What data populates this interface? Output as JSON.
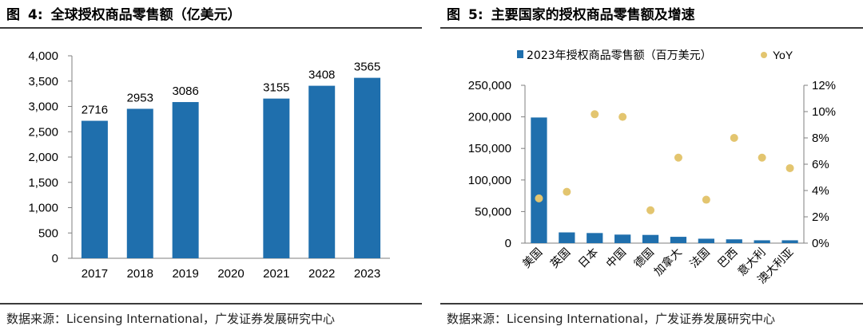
{
  "figures": [
    {
      "label": "图",
      "number": "4:",
      "title": "全球授权商品零售额（亿美元）",
      "source": "数据来源：Licensing International，广发证券发展研究中心"
    },
    {
      "label": "图",
      "number": "5:",
      "title": "主要国家的授权商品零售额及增速",
      "source": "数据来源：Licensing International，广发证券发展研究中心"
    }
  ],
  "chart_data": [
    {
      "type": "bar",
      "categories": [
        "2017",
        "2018",
        "2019",
        "2020",
        "2021",
        "2022",
        "2023"
      ],
      "values": [
        2716,
        2953,
        3086,
        null,
        3155,
        3408,
        3565
      ],
      "data_labels": [
        "2716",
        "2953",
        "3086",
        "",
        "3155",
        "3408",
        "3565"
      ],
      "ylim": [
        0,
        4000
      ],
      "yticks": [
        "0",
        "500",
        "1,000",
        "1,500",
        "2,000",
        "2,500",
        "3,000",
        "3,500",
        "4,000"
      ],
      "grid": false,
      "color": "#1f6fad"
    },
    {
      "type": "bar",
      "categories": [
        "美国",
        "英国",
        "日本",
        "中国",
        "德国",
        "加拿大",
        "法国",
        "巴西",
        "意大利",
        "澳大利亚"
      ],
      "series": [
        {
          "name": "2023年授权商品零售额（百万美元）",
          "type": "bar",
          "axis": "left",
          "color": "#1f6fad",
          "values": [
            199000,
            17000,
            16000,
            13500,
            13000,
            10000,
            7000,
            6000,
            4500,
            4500
          ]
        },
        {
          "name": "YoY",
          "type": "scatter",
          "axis": "right",
          "color": "#e3c56f",
          "values": [
            3.4,
            3.9,
            9.8,
            9.6,
            2.5,
            6.5,
            3.3,
            8.0,
            6.5,
            5.7
          ]
        }
      ],
      "ylim": [
        0,
        250000
      ],
      "yticks": [
        "0",
        "50,000",
        "100,000",
        "150,000",
        "200,000",
        "250,000"
      ],
      "y2lim": [
        0,
        12
      ],
      "y2ticks": [
        "0%",
        "2%",
        "4%",
        "6%",
        "8%",
        "10%",
        "12%"
      ],
      "legend_position": "top",
      "grid": false
    }
  ]
}
